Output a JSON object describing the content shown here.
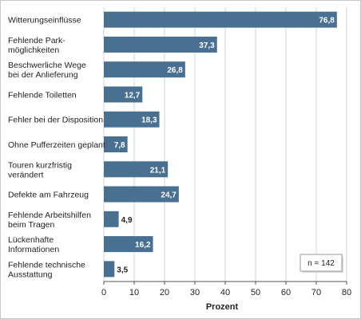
{
  "chart_data": {
    "type": "bar",
    "orientation": "horizontal",
    "categories": [
      [
        "Witterungseinflüsse"
      ],
      [
        "Fehlende Park-",
        "möglichkeiten"
      ],
      [
        "Beschwerliche Wege",
        "bei der Anlieferung"
      ],
      [
        "Fehlende Toiletten"
      ],
      [
        "Fehler bei der Disposition"
      ],
      [
        "Ohne Pufferzeiten geplant"
      ],
      [
        "Touren kurzfristig",
        "verändert"
      ],
      [
        "Defekte am Fahrzeug"
      ],
      [
        "Fehlende Arbeitshilfen",
        "beim Tragen"
      ],
      [
        "Lückenhafte",
        "Informationen"
      ],
      [
        "Fehlende technische",
        "Ausstattung"
      ]
    ],
    "values": [
      76.8,
      37.3,
      26.8,
      12.7,
      18.3,
      7.8,
      21.1,
      24.7,
      4.9,
      16.2,
      3.5
    ],
    "value_labels": [
      "76,8",
      "37,3",
      "26,8",
      "12,7",
      "18,3",
      "7,8",
      "21,1",
      "24,7",
      "4,9",
      "16,2",
      "3,5"
    ],
    "xlabel": "Prozent",
    "ylabel": "",
    "title": "",
    "xlim": [
      0,
      80
    ],
    "xticks": [
      0,
      10,
      20,
      30,
      40,
      50,
      60,
      70,
      80
    ],
    "grid": "vertical",
    "annotation": "n = 142",
    "annotation_position": "bottom-right",
    "colors": {
      "bar": "#4a7091",
      "grid": "#cfd6dc",
      "axis": "#555555",
      "label_inside": "#ffffff",
      "label_outside": "#222222"
    }
  }
}
